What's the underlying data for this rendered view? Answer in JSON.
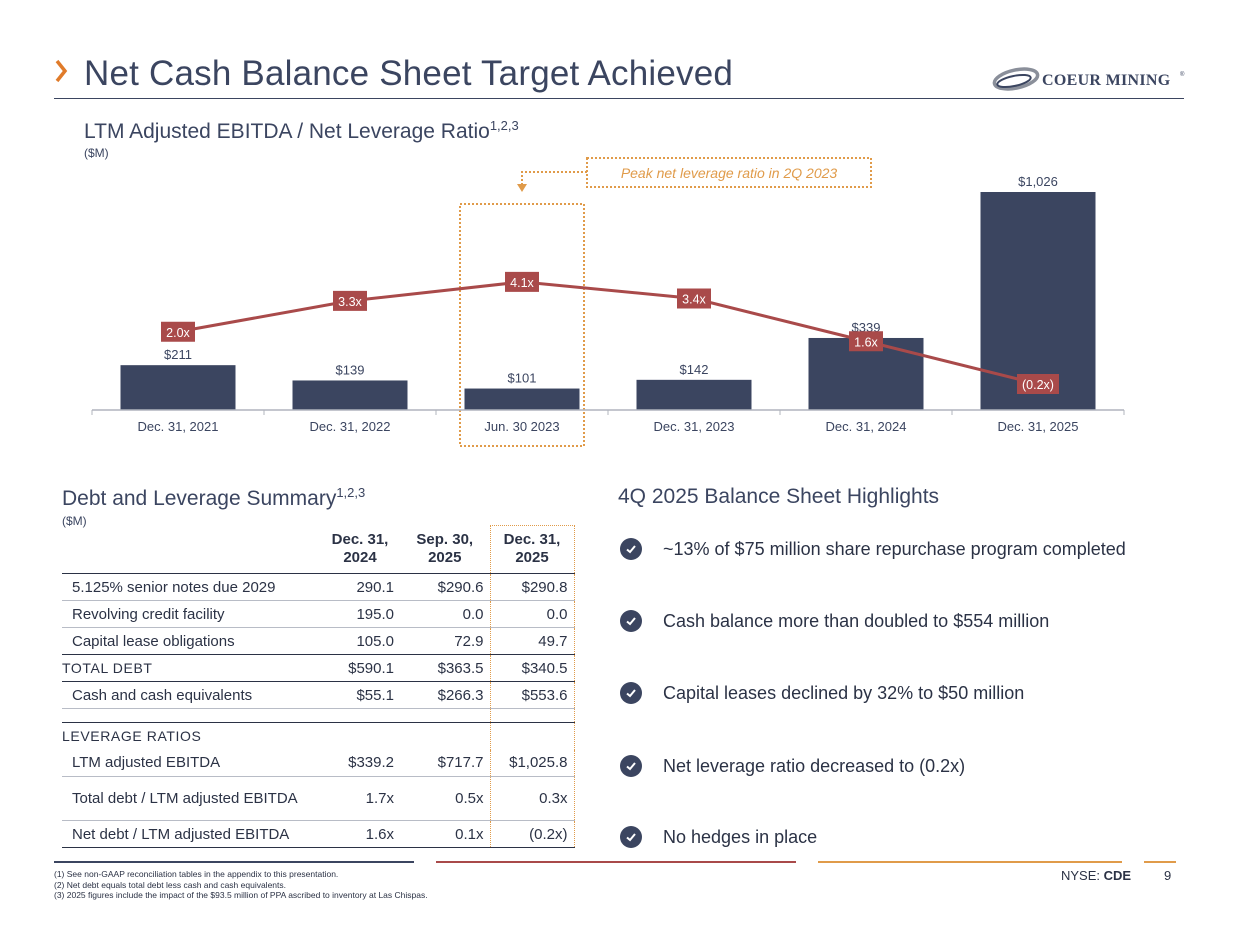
{
  "header": {
    "title": "Net Cash Balance Sheet Target Achieved",
    "logo_text": "COEUR MINING",
    "logo_reg": "®"
  },
  "chart_section": {
    "title": "LTM Adjusted EBITDA / Net Leverage Ratio",
    "title_sup": "1,2,3",
    "unit": "($M)",
    "callout": "Peak net leverage ratio in 2Q 2023"
  },
  "chart_data": {
    "type": "bar",
    "title": "LTM Adjusted EBITDA / Net Leverage Ratio",
    "unit": "($M)",
    "categories": [
      "Dec. 31, 2021",
      "Dec. 31, 2022",
      "Jun. 30 2023",
      "Dec. 31, 2023",
      "Dec. 31, 2024",
      "Dec. 31, 2025"
    ],
    "series": [
      {
        "values": [
          211,
          139,
          101,
          142,
          339,
          1026
        ],
        "labels": [
          "$211",
          "$139",
          "$101",
          "$142",
          "$339",
          "$1,026"
        ],
        "color": "#3b4560"
      },
      {
        "type": "line",
        "values": [
          2.0,
          3.3,
          4.1,
          3.4,
          1.6,
          -0.2
        ],
        "labels": [
          "2.0x",
          "3.3x",
          "4.1x",
          "3.4x",
          "1.6x",
          "(0.2x)"
        ],
        "color": "#a94a4a"
      }
    ],
    "highlight_category": "Jun. 30 2023",
    "colors": {
      "bar": "#3b4560",
      "line": "#a94a4a",
      "callout": "#e09b4a",
      "axis": "#b0b4bd"
    }
  },
  "debt_section": {
    "title": "Debt and Leverage Summary",
    "title_sup": "1,2,3",
    "unit": "($M)",
    "columns": [
      {
        "l1": "Dec. 31,",
        "l2": "2024"
      },
      {
        "l1": "Sep. 30,",
        "l2": "2025"
      },
      {
        "l1": "Dec. 31,",
        "l2": "2025"
      }
    ],
    "rows": {
      "senior_notes": {
        "label": "5.125% senior notes due 2029",
        "v": [
          "290.1",
          "$290.6",
          "$290.8"
        ]
      },
      "revolver": {
        "label": "Revolving credit facility",
        "v": [
          "195.0",
          "0.0",
          "0.0"
        ]
      },
      "leases": {
        "label": "Capital lease obligations",
        "v": [
          "105.0",
          "72.9",
          "49.7"
        ]
      },
      "total_debt": {
        "label": "TOTAL DEBT",
        "v": [
          "$590.1",
          "$363.5",
          "$340.5"
        ]
      },
      "cash": {
        "label": "Cash and cash equivalents",
        "v": [
          "$55.1",
          "$266.3",
          "$553.6"
        ]
      },
      "ratios_header": {
        "label": "LEVERAGE RATIOS"
      },
      "ebitda": {
        "label": "LTM adjusted EBITDA",
        "v": [
          "$339.2",
          "$717.7",
          "$1,025.8"
        ]
      },
      "total_lev": {
        "label": "Total debt / LTM adjusted EBITDA",
        "v": [
          "1.7x",
          "0.5x",
          "0.3x"
        ]
      },
      "net_lev": {
        "label": "Net debt / LTM adjusted EBITDA",
        "v": [
          "1.6x",
          "0.1x",
          "(0.2x)"
        ]
      }
    }
  },
  "highlights": {
    "title": "4Q 2025 Balance Sheet Highlights",
    "items": [
      "~13% of $75 million share repurchase program completed",
      "Cash balance more than doubled to $554 million",
      "Capital leases declined by 32% to $50 million",
      "Net leverage ratio decreased to (0.2x)",
      "No hedges in place"
    ],
    "check_icon": "check-circle-icon"
  },
  "footer": {
    "notes": [
      "(1) See non-GAAP reconciliation tables in the appendix to this presentation.",
      "(2) Net debt equals total debt less cash and cash equivalents.",
      "(3) 2025 figures include the impact of the $93.5 million of PPA ascribed to inventory at Las Chispas."
    ],
    "ticker_prefix": "NYSE: ",
    "ticker": "CDE",
    "page": "9",
    "rule_colors": [
      "#3b4560",
      "#a94a4a",
      "#e09b4a"
    ]
  }
}
